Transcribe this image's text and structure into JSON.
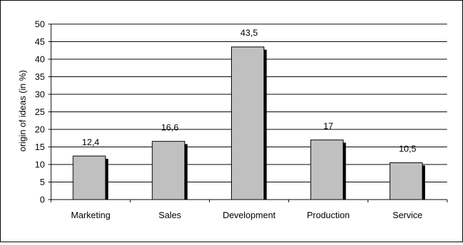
{
  "chart_data": {
    "type": "bar",
    "categories": [
      "Marketing",
      "Sales",
      "Development",
      "Production",
      "Service"
    ],
    "values": [
      12.4,
      16.6,
      43.5,
      17,
      10.5
    ],
    "value_labels": [
      "12,4",
      "16,6",
      "43,5",
      "17",
      "10,5"
    ],
    "title": "",
    "xlabel": "",
    "ylabel": "origin of ideas (in %)",
    "ylim": [
      0,
      50
    ],
    "yticks": [
      0,
      5,
      10,
      15,
      20,
      25,
      30,
      35,
      40,
      45,
      50
    ],
    "grid": true,
    "legend": "none",
    "colors": {
      "bar": "#c0c0c0",
      "shadow": "#000000",
      "grid": "#000000"
    }
  }
}
